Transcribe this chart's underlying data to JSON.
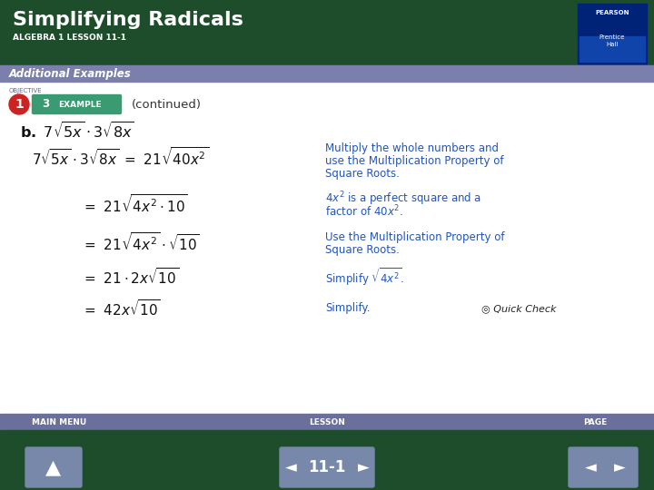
{
  "title": "Simplifying Radicals",
  "subtitle": "ALGEBRA 1 LESSON 11-1",
  "section_label": "Additional Examples",
  "header_bg": "#1e4d2b",
  "section_bg": "#7b7fac",
  "footer_bg": "#1e4d2b",
  "footer_nav_bg": "#6b6f9c",
  "body_bg": "#ffffff",
  "title_color": "#ffffff",
  "subtitle_color": "#ffffff",
  "section_color": "#ffffff",
  "blue_text": "#2255bb",
  "example_bg": "#3a9a72",
  "example_num": "3",
  "example_label": "EXAMPLE",
  "continued": "(continued)",
  "objective_num": "1",
  "obj_bg": "#cc2222",
  "footer_lesson": "11-1",
  "pearson_bg": "#002277",
  "pearson_inner_bg": "#1144aa"
}
